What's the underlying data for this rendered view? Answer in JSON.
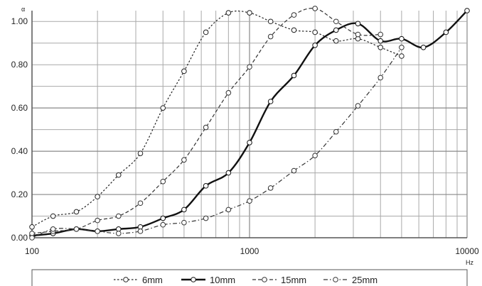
{
  "chart_data": {
    "type": "line",
    "x_scale": "log",
    "xlim": [
      100,
      10000
    ],
    "ylim": [
      0,
      1.05
    ],
    "y_unit": "α",
    "x_unit": "Hz",
    "x_ticks": [
      "100",
      "1000",
      "10000"
    ],
    "y_ticks": [
      "0.00",
      "0.20",
      "0.40",
      "0.60",
      "0.80",
      "1.00"
    ],
    "grid": true,
    "legend_position": "bottom",
    "series": [
      {
        "name": "6mm",
        "style": "dotted",
        "color": "#222222",
        "x": [
          100,
          125,
          160,
          200,
          250,
          315,
          400,
          500,
          630,
          800,
          1000,
          1250,
          1600,
          2000,
          2500,
          3150,
          4000,
          5000
        ],
        "y": [
          0.05,
          0.1,
          0.12,
          0.19,
          0.29,
          0.39,
          0.6,
          0.77,
          0.95,
          1.04,
          1.04,
          1.0,
          0.96,
          0.95,
          0.91,
          0.92,
          0.88,
          0.84
        ]
      },
      {
        "name": "10mm",
        "style": "solid",
        "color": "#111111",
        "x": [
          100,
          125,
          160,
          200,
          250,
          315,
          400,
          500,
          630,
          800,
          1000,
          1250,
          1600,
          2000,
          2500,
          3150,
          4000,
          5000,
          6300,
          8000,
          10000
        ],
        "y": [
          0.01,
          0.02,
          0.04,
          0.03,
          0.04,
          0.05,
          0.09,
          0.13,
          0.24,
          0.3,
          0.44,
          0.63,
          0.75,
          0.89,
          0.96,
          0.99,
          0.91,
          0.92,
          0.88,
          0.95,
          1.05
        ]
      },
      {
        "name": "15mm",
        "style": "dashed",
        "color": "#333333",
        "x": [
          100,
          125,
          160,
          200,
          250,
          315,
          400,
          500,
          630,
          800,
          1000,
          1250,
          1600,
          2000,
          2500,
          3150,
          4000
        ],
        "y": [
          0.02,
          0.03,
          0.04,
          0.08,
          0.1,
          0.16,
          0.26,
          0.36,
          0.51,
          0.67,
          0.79,
          0.93,
          1.03,
          1.06,
          1.0,
          0.94,
          0.94
        ]
      },
      {
        "name": "25mm",
        "style": "dashdot",
        "color": "#333333",
        "x": [
          100,
          125,
          160,
          200,
          250,
          315,
          400,
          500,
          630,
          800,
          1000,
          1250,
          1600,
          2000,
          2500,
          3150,
          4000,
          5000
        ],
        "y": [
          0.0,
          0.04,
          0.04,
          0.03,
          0.02,
          0.03,
          0.06,
          0.07,
          0.09,
          0.13,
          0.17,
          0.23,
          0.31,
          0.38,
          0.49,
          0.61,
          0.74,
          0.88
        ]
      }
    ]
  }
}
